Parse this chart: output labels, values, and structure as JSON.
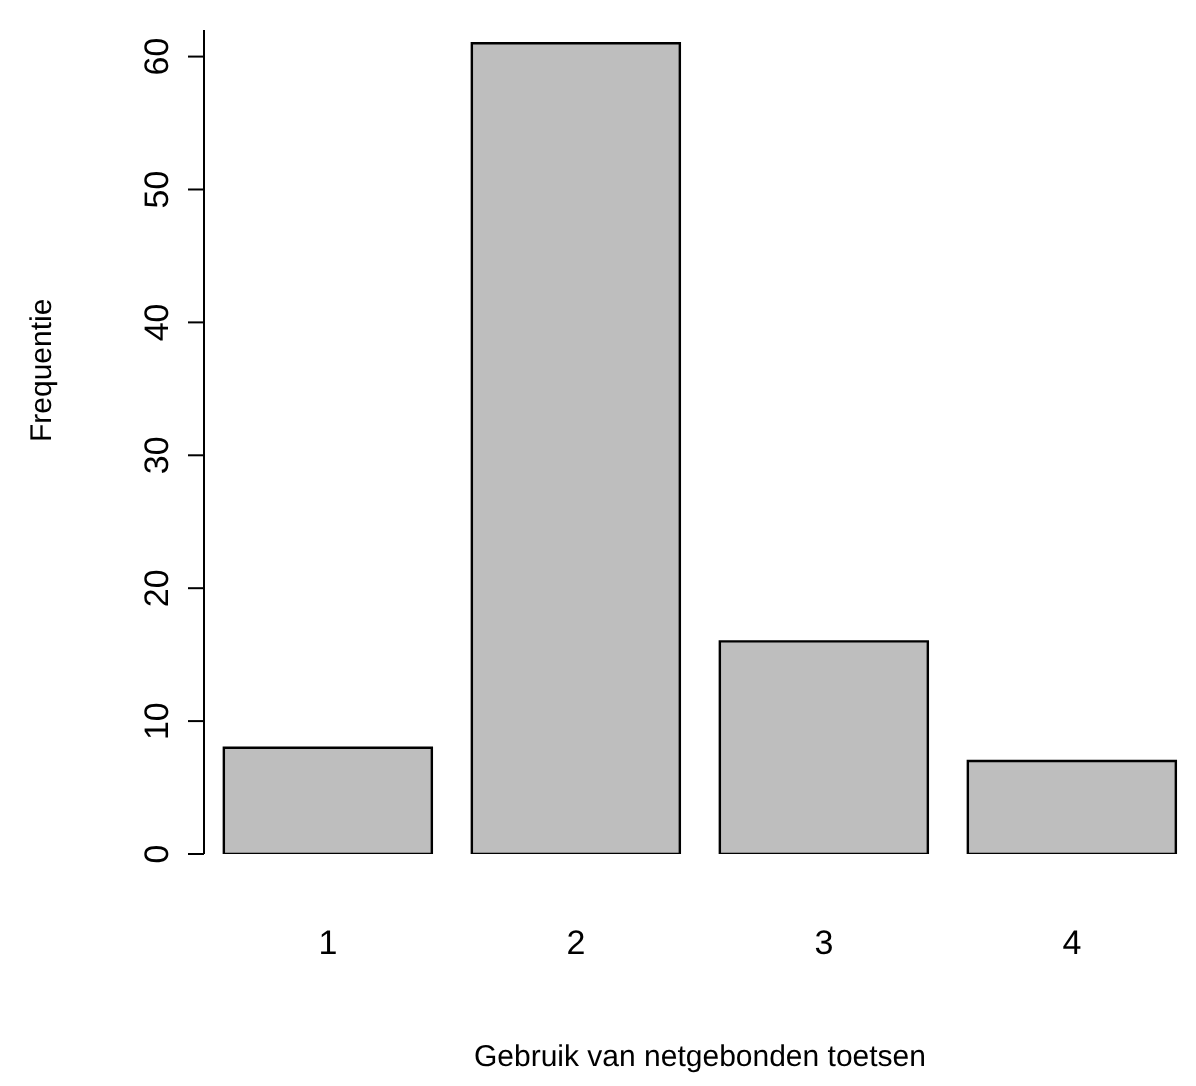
{
  "chart_data": {
    "type": "bar",
    "xlabel": "Gebruik van netgebonden toetsen",
    "ylabel": "Frequentie",
    "categories": [
      "1",
      "2",
      "3",
      "4"
    ],
    "values": [
      8,
      61,
      16,
      7
    ],
    "color": "#bebebe",
    "ylim": [
      0,
      62
    ],
    "yticks": [
      0,
      10,
      20,
      30,
      40,
      50,
      60
    ],
    "grid": false,
    "legend": false
  }
}
